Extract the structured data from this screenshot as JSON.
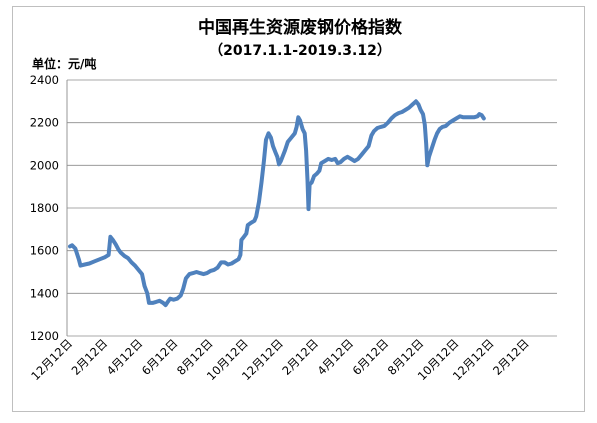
{
  "chart_data": {
    "type": "line",
    "title": "中国再生资源废钢价格指数",
    "subtitle": "（2017.1.1-2019.3.12）",
    "unit_label": "单位：元/吨",
    "ylim": [
      1200,
      2400
    ],
    "yticks": [
      1200,
      1400,
      1600,
      1800,
      2000,
      2200,
      2400
    ],
    "xticks": [
      "12月12日",
      "2月12日",
      "4月12日",
      "6月12日",
      "8月12日",
      "10月12日",
      "12月12日",
      "2月12日",
      "4月12日",
      "6月12日",
      "8月12日",
      "10月12日",
      "12月12日",
      "2月12日"
    ],
    "grid": true,
    "line_color": "#4f81bd",
    "series": [
      {
        "values": [
          [
            0,
            1620
          ],
          [
            0.06,
            1625
          ],
          [
            0.15,
            1610
          ],
          [
            0.25,
            1560
          ],
          [
            0.3,
            1530
          ],
          [
            0.42,
            1535
          ],
          [
            0.55,
            1540
          ],
          [
            0.7,
            1550
          ],
          [
            0.85,
            1560
          ],
          [
            1.0,
            1570
          ],
          [
            1.1,
            1580
          ],
          [
            1.15,
            1665
          ],
          [
            1.22,
            1650
          ],
          [
            1.3,
            1630
          ],
          [
            1.38,
            1605
          ],
          [
            1.45,
            1590
          ],
          [
            1.55,
            1575
          ],
          [
            1.65,
            1565
          ],
          [
            1.75,
            1545
          ],
          [
            1.85,
            1530
          ],
          [
            1.95,
            1510
          ],
          [
            2.05,
            1490
          ],
          [
            2.12,
            1435
          ],
          [
            2.2,
            1400
          ],
          [
            2.25,
            1355
          ],
          [
            2.35,
            1355
          ],
          [
            2.45,
            1360
          ],
          [
            2.55,
            1365
          ],
          [
            2.65,
            1355
          ],
          [
            2.72,
            1345
          ],
          [
            2.78,
            1360
          ],
          [
            2.85,
            1375
          ],
          [
            2.95,
            1370
          ],
          [
            3.05,
            1375
          ],
          [
            3.15,
            1390
          ],
          [
            3.22,
            1420
          ],
          [
            3.3,
            1470
          ],
          [
            3.4,
            1490
          ],
          [
            3.5,
            1495
          ],
          [
            3.6,
            1500
          ],
          [
            3.7,
            1495
          ],
          [
            3.8,
            1490
          ],
          [
            3.9,
            1495
          ],
          [
            4.0,
            1505
          ],
          [
            4.1,
            1510
          ],
          [
            4.2,
            1520
          ],
          [
            4.3,
            1545
          ],
          [
            4.4,
            1545
          ],
          [
            4.5,
            1535
          ],
          [
            4.6,
            1540
          ],
          [
            4.7,
            1550
          ],
          [
            4.8,
            1560
          ],
          [
            4.85,
            1580
          ],
          [
            4.88,
            1650
          ],
          [
            4.95,
            1665
          ],
          [
            5.02,
            1680
          ],
          [
            5.06,
            1720
          ],
          [
            5.15,
            1730
          ],
          [
            5.25,
            1740
          ],
          [
            5.3,
            1760
          ],
          [
            5.38,
            1830
          ],
          [
            5.45,
            1920
          ],
          [
            5.52,
            2020
          ],
          [
            5.58,
            2120
          ],
          [
            5.65,
            2150
          ],
          [
            5.72,
            2130
          ],
          [
            5.78,
            2090
          ],
          [
            5.85,
            2060
          ],
          [
            5.9,
            2040
          ],
          [
            5.95,
            2005
          ],
          [
            6.0,
            2020
          ],
          [
            6.05,
            2040
          ],
          [
            6.12,
            2070
          ],
          [
            6.2,
            2110
          ],
          [
            6.3,
            2130
          ],
          [
            6.4,
            2150
          ],
          [
            6.45,
            2180
          ],
          [
            6.5,
            2225
          ],
          [
            6.55,
            2210
          ],
          [
            6.62,
            2170
          ],
          [
            6.68,
            2150
          ],
          [
            6.72,
            2070
          ],
          [
            6.76,
            1930
          ],
          [
            6.79,
            1795
          ],
          [
            6.82,
            1910
          ],
          [
            6.88,
            1920
          ],
          [
            6.95,
            1950
          ],
          [
            7.02,
            1960
          ],
          [
            7.1,
            1975
          ],
          [
            7.15,
            2010
          ],
          [
            7.25,
            2020
          ],
          [
            7.35,
            2030
          ],
          [
            7.45,
            2025
          ],
          [
            7.55,
            2030
          ],
          [
            7.62,
            2010
          ],
          [
            7.7,
            2015
          ],
          [
            7.8,
            2030
          ],
          [
            7.9,
            2040
          ],
          [
            8.0,
            2030
          ],
          [
            8.1,
            2020
          ],
          [
            8.2,
            2030
          ],
          [
            8.3,
            2050
          ],
          [
            8.4,
            2070
          ],
          [
            8.5,
            2090
          ],
          [
            8.58,
            2140
          ],
          [
            8.65,
            2160
          ],
          [
            8.75,
            2175
          ],
          [
            8.85,
            2180
          ],
          [
            8.95,
            2185
          ],
          [
            9.05,
            2200
          ],
          [
            9.15,
            2220
          ],
          [
            9.25,
            2235
          ],
          [
            9.35,
            2245
          ],
          [
            9.45,
            2250
          ],
          [
            9.55,
            2260
          ],
          [
            9.65,
            2270
          ],
          [
            9.75,
            2285
          ],
          [
            9.85,
            2300
          ],
          [
            9.92,
            2285
          ],
          [
            9.98,
            2260
          ],
          [
            10.05,
            2240
          ],
          [
            10.1,
            2190
          ],
          [
            10.14,
            2100
          ],
          [
            10.17,
            2000
          ],
          [
            10.22,
            2040
          ],
          [
            10.3,
            2080
          ],
          [
            10.38,
            2120
          ],
          [
            10.45,
            2150
          ],
          [
            10.52,
            2170
          ],
          [
            10.6,
            2180
          ],
          [
            10.7,
            2185
          ],
          [
            10.8,
            2200
          ],
          [
            10.9,
            2210
          ],
          [
            11.0,
            2220
          ],
          [
            11.1,
            2230
          ],
          [
            11.2,
            2225
          ],
          [
            11.35,
            2225
          ],
          [
            11.5,
            2225
          ],
          [
            11.6,
            2230
          ],
          [
            11.65,
            2240
          ],
          [
            11.72,
            2235
          ],
          [
            11.78,
            2220
          ]
        ]
      }
    ]
  }
}
